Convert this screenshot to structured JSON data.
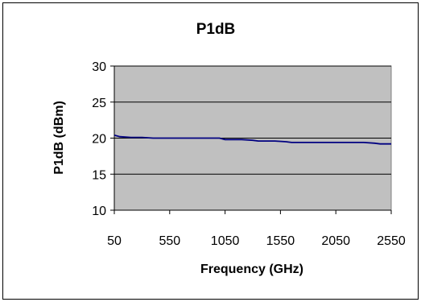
{
  "chart_data": {
    "type": "line",
    "title": "P1dB",
    "xlabel": "Frequency (GHz)",
    "ylabel": "P1dB (dBm)",
    "xlim": [
      50,
      2550
    ],
    "ylim": [
      10,
      30
    ],
    "xticks": [
      "50",
      "550",
      "1050",
      "1550",
      "2050",
      "2550"
    ],
    "yticks": [
      "10",
      "15",
      "20",
      "25",
      "30"
    ],
    "grid": true,
    "legend": "none",
    "plot_background": "#c0c0c0",
    "line_color": "#000080",
    "series": [
      {
        "x": [
          50,
          100,
          200,
          300,
          400,
          500,
          600,
          700,
          800,
          900,
          1000,
          1050,
          1100,
          1200,
          1300,
          1350,
          1400,
          1500,
          1600,
          1650,
          1700,
          1800,
          1900,
          2000,
          2100,
          2200,
          2300,
          2400,
          2450,
          2500,
          2550
        ],
        "y": [
          20.4,
          20.2,
          20.1,
          20.1,
          20.0,
          20.0,
          20.0,
          20.0,
          20.0,
          20.0,
          20.0,
          19.8,
          19.8,
          19.8,
          19.7,
          19.6,
          19.6,
          19.6,
          19.5,
          19.4,
          19.4,
          19.4,
          19.4,
          19.4,
          19.4,
          19.4,
          19.4,
          19.3,
          19.2,
          19.2,
          19.2
        ]
      }
    ]
  }
}
